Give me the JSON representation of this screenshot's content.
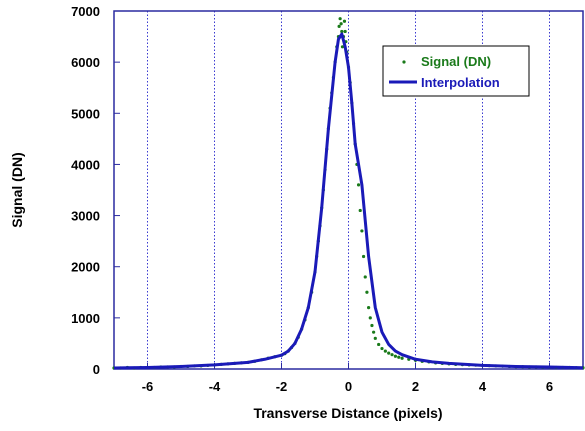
{
  "chart_data": {
    "type": "scatter",
    "title": "",
    "xlabel": "Transverse Distance (pixels)",
    "ylabel": "Signal (DN)",
    "xlim": [
      -7,
      7
    ],
    "ylim": [
      0,
      7000
    ],
    "x_ticks": [
      -6,
      -4,
      -2,
      0,
      2,
      4,
      6
    ],
    "y_ticks": [
      0,
      1000,
      2000,
      3000,
      4000,
      5000,
      6000,
      7000
    ],
    "x_tick_labels": [
      "-6",
      "-4",
      "-2",
      "0",
      "2",
      "4",
      "6"
    ],
    "y_tick_labels": [
      "0",
      "1000",
      "2000",
      "3000",
      "4000",
      "5000",
      "6000",
      "7000"
    ],
    "grid": "vertical dotted lines at x ticks",
    "legend_position": "top-right",
    "series": [
      {
        "name": "Signal (DN)",
        "style": "scatter",
        "color": "#1a7a1a",
        "x": [
          -7.0,
          -6.8,
          -6.6,
          -6.4,
          -6.2,
          -6.0,
          -5.8,
          -5.6,
          -5.4,
          -5.2,
          -5.0,
          -4.8,
          -4.6,
          -4.4,
          -4.2,
          -4.0,
          -3.8,
          -3.6,
          -3.4,
          -3.2,
          -3.0,
          -2.8,
          -2.6,
          -2.4,
          -2.2,
          -2.0,
          -1.9,
          -1.8,
          -1.7,
          -1.6,
          -1.5,
          -1.4,
          -1.3,
          -1.2,
          -1.1,
          -1.0,
          -0.95,
          -0.9,
          -0.85,
          -0.8,
          -0.75,
          -0.7,
          -0.65,
          -0.6,
          -0.55,
          -0.5,
          -0.45,
          -0.4,
          -0.35,
          -0.3,
          -0.28,
          -0.25,
          -0.22,
          -0.2,
          -0.18,
          -0.15,
          -0.12,
          -0.1,
          -0.08,
          -0.05,
          0.0,
          0.05,
          0.1,
          0.15,
          0.2,
          0.25,
          0.3,
          0.35,
          0.4,
          0.45,
          0.5,
          0.55,
          0.6,
          0.65,
          0.7,
          0.75,
          0.8,
          0.9,
          1.0,
          1.1,
          1.2,
          1.3,
          1.4,
          1.5,
          1.6,
          1.8,
          2.0,
          2.2,
          2.4,
          2.6,
          2.8,
          3.0,
          3.2,
          3.4,
          3.6,
          3.8,
          4.0,
          4.2,
          4.4,
          4.6,
          4.8,
          5.0,
          5.2,
          5.4,
          5.6,
          5.8,
          6.0,
          6.2,
          6.4,
          6.6,
          6.8,
          7.0
        ],
        "y": [
          20,
          20,
          30,
          20,
          30,
          30,
          30,
          40,
          40,
          40,
          50,
          50,
          60,
          60,
          70,
          80,
          90,
          100,
          110,
          120,
          130,
          150,
          180,
          210,
          240,
          270,
          300,
          350,
          420,
          500,
          620,
          780,
          960,
          1200,
          1500,
          1900,
          2200,
          2500,
          2800,
          3150,
          3500,
          3900,
          4300,
          4700,
          5100,
          5400,
          5700,
          6000,
          6300,
          6500,
          6700,
          6850,
          6750,
          6600,
          6300,
          6500,
          6800,
          6600,
          6400,
          6200,
          5900,
          5600,
          5200,
          4800,
          4400,
          4000,
          3600,
          3100,
          2700,
          2200,
          1800,
          1500,
          1200,
          1000,
          850,
          720,
          600,
          480,
          400,
          350,
          310,
          280,
          250,
          230,
          210,
          190,
          170,
          150,
          140,
          120,
          110,
          100,
          90,
          85,
          80,
          75,
          70,
          65,
          60,
          55,
          50,
          45,
          45,
          40,
          40,
          35,
          35,
          30,
          30,
          30,
          25,
          25
        ]
      },
      {
        "name": "Interpolation",
        "style": "line",
        "color": "#1a1ab8",
        "x": [
          -7.0,
          -6.0,
          -5.0,
          -4.0,
          -3.0,
          -2.5,
          -2.0,
          -1.8,
          -1.6,
          -1.4,
          -1.2,
          -1.0,
          -0.8,
          -0.6,
          -0.4,
          -0.3,
          -0.2,
          -0.1,
          0.0,
          0.1,
          0.2,
          0.4,
          0.6,
          0.8,
          1.0,
          1.2,
          1.4,
          1.6,
          2.0,
          2.5,
          3.0,
          4.0,
          5.0,
          6.0,
          7.0
        ],
        "y": [
          20,
          30,
          50,
          80,
          130,
          190,
          270,
          350,
          500,
          780,
          1200,
          1900,
          3150,
          4700,
          6000,
          6450,
          6550,
          6300,
          5900,
          5200,
          4400,
          3600,
          2200,
          1200,
          720,
          480,
          350,
          280,
          190,
          140,
          110,
          70,
          50,
          40,
          25
        ]
      }
    ]
  }
}
